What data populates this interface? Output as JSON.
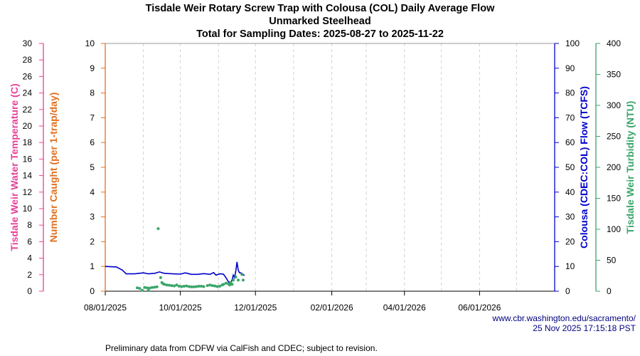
{
  "chart_data": {
    "type": "line",
    "title": "Tisdale Weir Rotary Screw Trap with Colousa (COL) Daily Average Flow",
    "subtitle": "Unmarked Steelhead",
    "subtitle2": "Total for Sampling Dates: 2025-08-27 to 2025-11-22",
    "x_range": [
      "2025-08-01",
      "2026-08-01"
    ],
    "x_ticks": [
      "08/01/2025",
      "10/01/2025",
      "12/01/2025",
      "02/01/2026",
      "04/01/2026",
      "06/01/2026"
    ],
    "x_tick_dates": [
      "2025-08-01",
      "2025-10-01",
      "2025-12-01",
      "2026-02-01",
      "2026-04-01",
      "2026-06-01"
    ],
    "grid": "vertical dashed monthly",
    "axes": {
      "temperature": {
        "label": "Tisdale Weir Water Temperature (C)",
        "range": [
          0,
          30
        ],
        "step": 2,
        "color": "#e8409a"
      },
      "caught": {
        "label": "Number Caught (per 1-trap/day)",
        "range": [
          0,
          10
        ],
        "step": 1,
        "color": "#e07020"
      },
      "flow": {
        "label": "Colousa (CDEC:COL) Flow (TCFS)",
        "range": [
          0,
          100
        ],
        "step": 10,
        "color": "#0000cc"
      },
      "turbidity": {
        "label": "Tisdale Weir Turbidity (NTU)",
        "range": [
          0,
          400
        ],
        "step": 50,
        "color": "#3aa56a"
      }
    },
    "series": [
      {
        "axis": "flow",
        "style": "line",
        "color": "#0000cc",
        "points": [
          [
            "2025-08-01",
            10.0
          ],
          [
            "2025-08-10",
            9.8
          ],
          [
            "2025-08-15",
            8.5
          ],
          [
            "2025-08-18",
            7.0
          ],
          [
            "2025-08-25",
            7.0
          ],
          [
            "2025-09-01",
            7.4
          ],
          [
            "2025-09-05",
            7.0
          ],
          [
            "2025-09-10",
            7.2
          ],
          [
            "2025-09-14",
            7.8
          ],
          [
            "2025-09-18",
            7.2
          ],
          [
            "2025-09-25",
            7.0
          ],
          [
            "2025-10-01",
            6.9
          ],
          [
            "2025-10-05",
            7.4
          ],
          [
            "2025-10-10",
            6.8
          ],
          [
            "2025-10-15",
            6.8
          ],
          [
            "2025-10-20",
            7.1
          ],
          [
            "2025-10-25",
            6.8
          ],
          [
            "2025-10-28",
            7.5
          ],
          [
            "2025-10-30",
            6.5
          ],
          [
            "2025-11-02",
            7.0
          ],
          [
            "2025-11-05",
            6.9
          ],
          [
            "2025-11-07",
            5.5
          ],
          [
            "2025-11-09",
            3.8
          ],
          [
            "2025-11-11",
            3.6
          ],
          [
            "2025-11-12",
            4.5
          ],
          [
            "2025-11-13",
            6.5
          ],
          [
            "2025-11-14",
            5.5
          ],
          [
            "2025-11-15",
            8.0
          ],
          [
            "2025-11-16",
            11.8
          ],
          [
            "2025-11-17",
            8.5
          ],
          [
            "2025-11-18",
            7.5
          ],
          [
            "2025-11-20",
            7.2
          ],
          [
            "2025-11-22",
            6.3
          ]
        ]
      },
      {
        "axis": "turbidity",
        "style": "points",
        "color": "#3aa56a",
        "points": [
          [
            "2025-08-27",
            5.4
          ],
          [
            "2025-08-29",
            4.5
          ],
          [
            "2025-08-31",
            1.5
          ],
          [
            "2025-09-02",
            6.0
          ],
          [
            "2025-09-04",
            5.5
          ],
          [
            "2025-09-05",
            1.0
          ],
          [
            "2025-09-06",
            5.0
          ],
          [
            "2025-09-08",
            6.0
          ],
          [
            "2025-09-10",
            6.5
          ],
          [
            "2025-09-12",
            7.0
          ],
          [
            "2025-09-13",
            101
          ],
          [
            "2025-09-15",
            22
          ],
          [
            "2025-09-16",
            14
          ],
          [
            "2025-09-17",
            12
          ],
          [
            "2025-09-18",
            11
          ],
          [
            "2025-09-20",
            10
          ],
          [
            "2025-09-22",
            9.6
          ],
          [
            "2025-09-24",
            9.0
          ],
          [
            "2025-09-26",
            8.5
          ],
          [
            "2025-09-28",
            10
          ],
          [
            "2025-09-30",
            8.0
          ],
          [
            "2025-10-02",
            7.5
          ],
          [
            "2025-10-04",
            8.0
          ],
          [
            "2025-10-06",
            8.5
          ],
          [
            "2025-10-08",
            7.5
          ],
          [
            "2025-10-10",
            7.0
          ],
          [
            "2025-10-12",
            7.0
          ],
          [
            "2025-10-14",
            7.5
          ],
          [
            "2025-10-16",
            8.0
          ],
          [
            "2025-10-18",
            8.0
          ],
          [
            "2025-10-20",
            7.5
          ],
          [
            "2025-10-23",
            9.0
          ],
          [
            "2025-10-25",
            10
          ],
          [
            "2025-10-27",
            9.0
          ],
          [
            "2025-10-29",
            8.5
          ],
          [
            "2025-10-31",
            7.5
          ],
          [
            "2025-11-02",
            8.0
          ],
          [
            "2025-11-04",
            10
          ],
          [
            "2025-11-05",
            11
          ],
          [
            "2025-11-07",
            13
          ],
          [
            "2025-11-09",
            12
          ],
          [
            "2025-11-10",
            10
          ],
          [
            "2025-11-11",
            14
          ],
          [
            "2025-11-12",
            11
          ],
          [
            "2025-11-13",
            18
          ],
          [
            "2025-11-15",
            23
          ],
          [
            "2025-11-17",
            18
          ],
          [
            "2025-11-20",
            27
          ],
          [
            "2025-11-21",
            18
          ]
        ]
      }
    ]
  },
  "footer": {
    "source_url": "www.cbr.washington.edu/sacramento/",
    "timestamp": "25 Nov 2025 17:15:18 PST",
    "note": "Preliminary data from CDFW via CalFish and CDEC; subject to revision."
  }
}
